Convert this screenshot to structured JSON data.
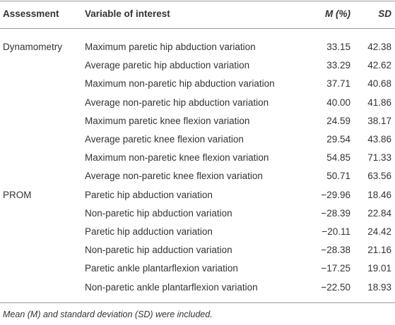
{
  "table": {
    "header": [
      "Assessment",
      "Variable of interest",
      "M (%)",
      "SD"
    ],
    "groups": [
      {
        "assessment": "Dynamometry",
        "rows": [
          [
            "Maximum paretic hip abduction variation",
            "33.15",
            "42.38"
          ],
          [
            "Average paretic hip abduction variation",
            "33.29",
            "42.62"
          ],
          [
            "Maximum non-paretic hip abduction variation",
            "37.71",
            "40.68"
          ],
          [
            "Average non-paretic hip abduction variation",
            "40.00",
            "41.86"
          ],
          [
            "Maximum paretic knee flexion variation",
            "24.59",
            "38.17"
          ],
          [
            "Average paretic knee flexion variation",
            "29.54",
            "43.86"
          ],
          [
            "Maximum non-paretic knee flexion variation",
            "54.85",
            "71.33"
          ],
          [
            "Average non-paretic knee flexion variation",
            "50.71",
            "63.56"
          ]
        ]
      },
      {
        "assessment": "PROM",
        "rows": [
          [
            "Paretic hip abduction variation",
            "−29.96",
            "18.46"
          ],
          [
            "Non-paretic hip abduction variation",
            "−28.39",
            "22.84"
          ],
          [
            "Paretic hip adduction variation",
            "−20.11",
            "24.42"
          ],
          [
            "Non-paretic hip adduction variation",
            "−28.38",
            "21.16"
          ],
          [
            "Paretic ankle plantarflexion variation",
            "−17.25",
            "19.01"
          ],
          [
            "Non-paretic ankle plantarflexion variation",
            "−22.50",
            "18.93"
          ]
        ]
      }
    ],
    "note": "Mean (M) and standard deviation (SD) were included."
  }
}
